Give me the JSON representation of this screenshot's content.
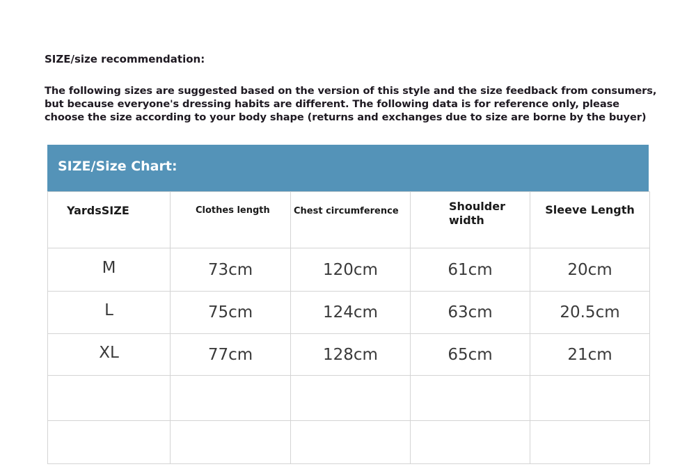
{
  "heading": "SIZE/size recommendation:",
  "intro": [
    "The following sizes are suggested based on the version of this style and the size feedback from consumers,",
    "but because everyone's dressing habits are different. The following data is for reference only, please",
    "choose the size according to your body shape (returns and exchanges due to size are borne by the buyer)"
  ],
  "chart_title": "SIZE/Size Chart:",
  "header_color": "#5493b8",
  "columns": [
    "YardsSIZE",
    "Clothes length",
    "Chest circumference",
    "Shoulder width",
    "Sleeve Length"
  ],
  "rows": [
    [
      "M",
      "73cm",
      "120cm",
      "61cm",
      "20cm"
    ],
    [
      "L",
      "75cm",
      "124cm",
      "63cm",
      "20.5cm"
    ],
    [
      "XL",
      "77cm",
      "128cm",
      "65cm",
      "21cm"
    ],
    [
      "",
      "",
      "",
      "",
      ""
    ],
    [
      "",
      "",
      "",
      "",
      ""
    ]
  ]
}
